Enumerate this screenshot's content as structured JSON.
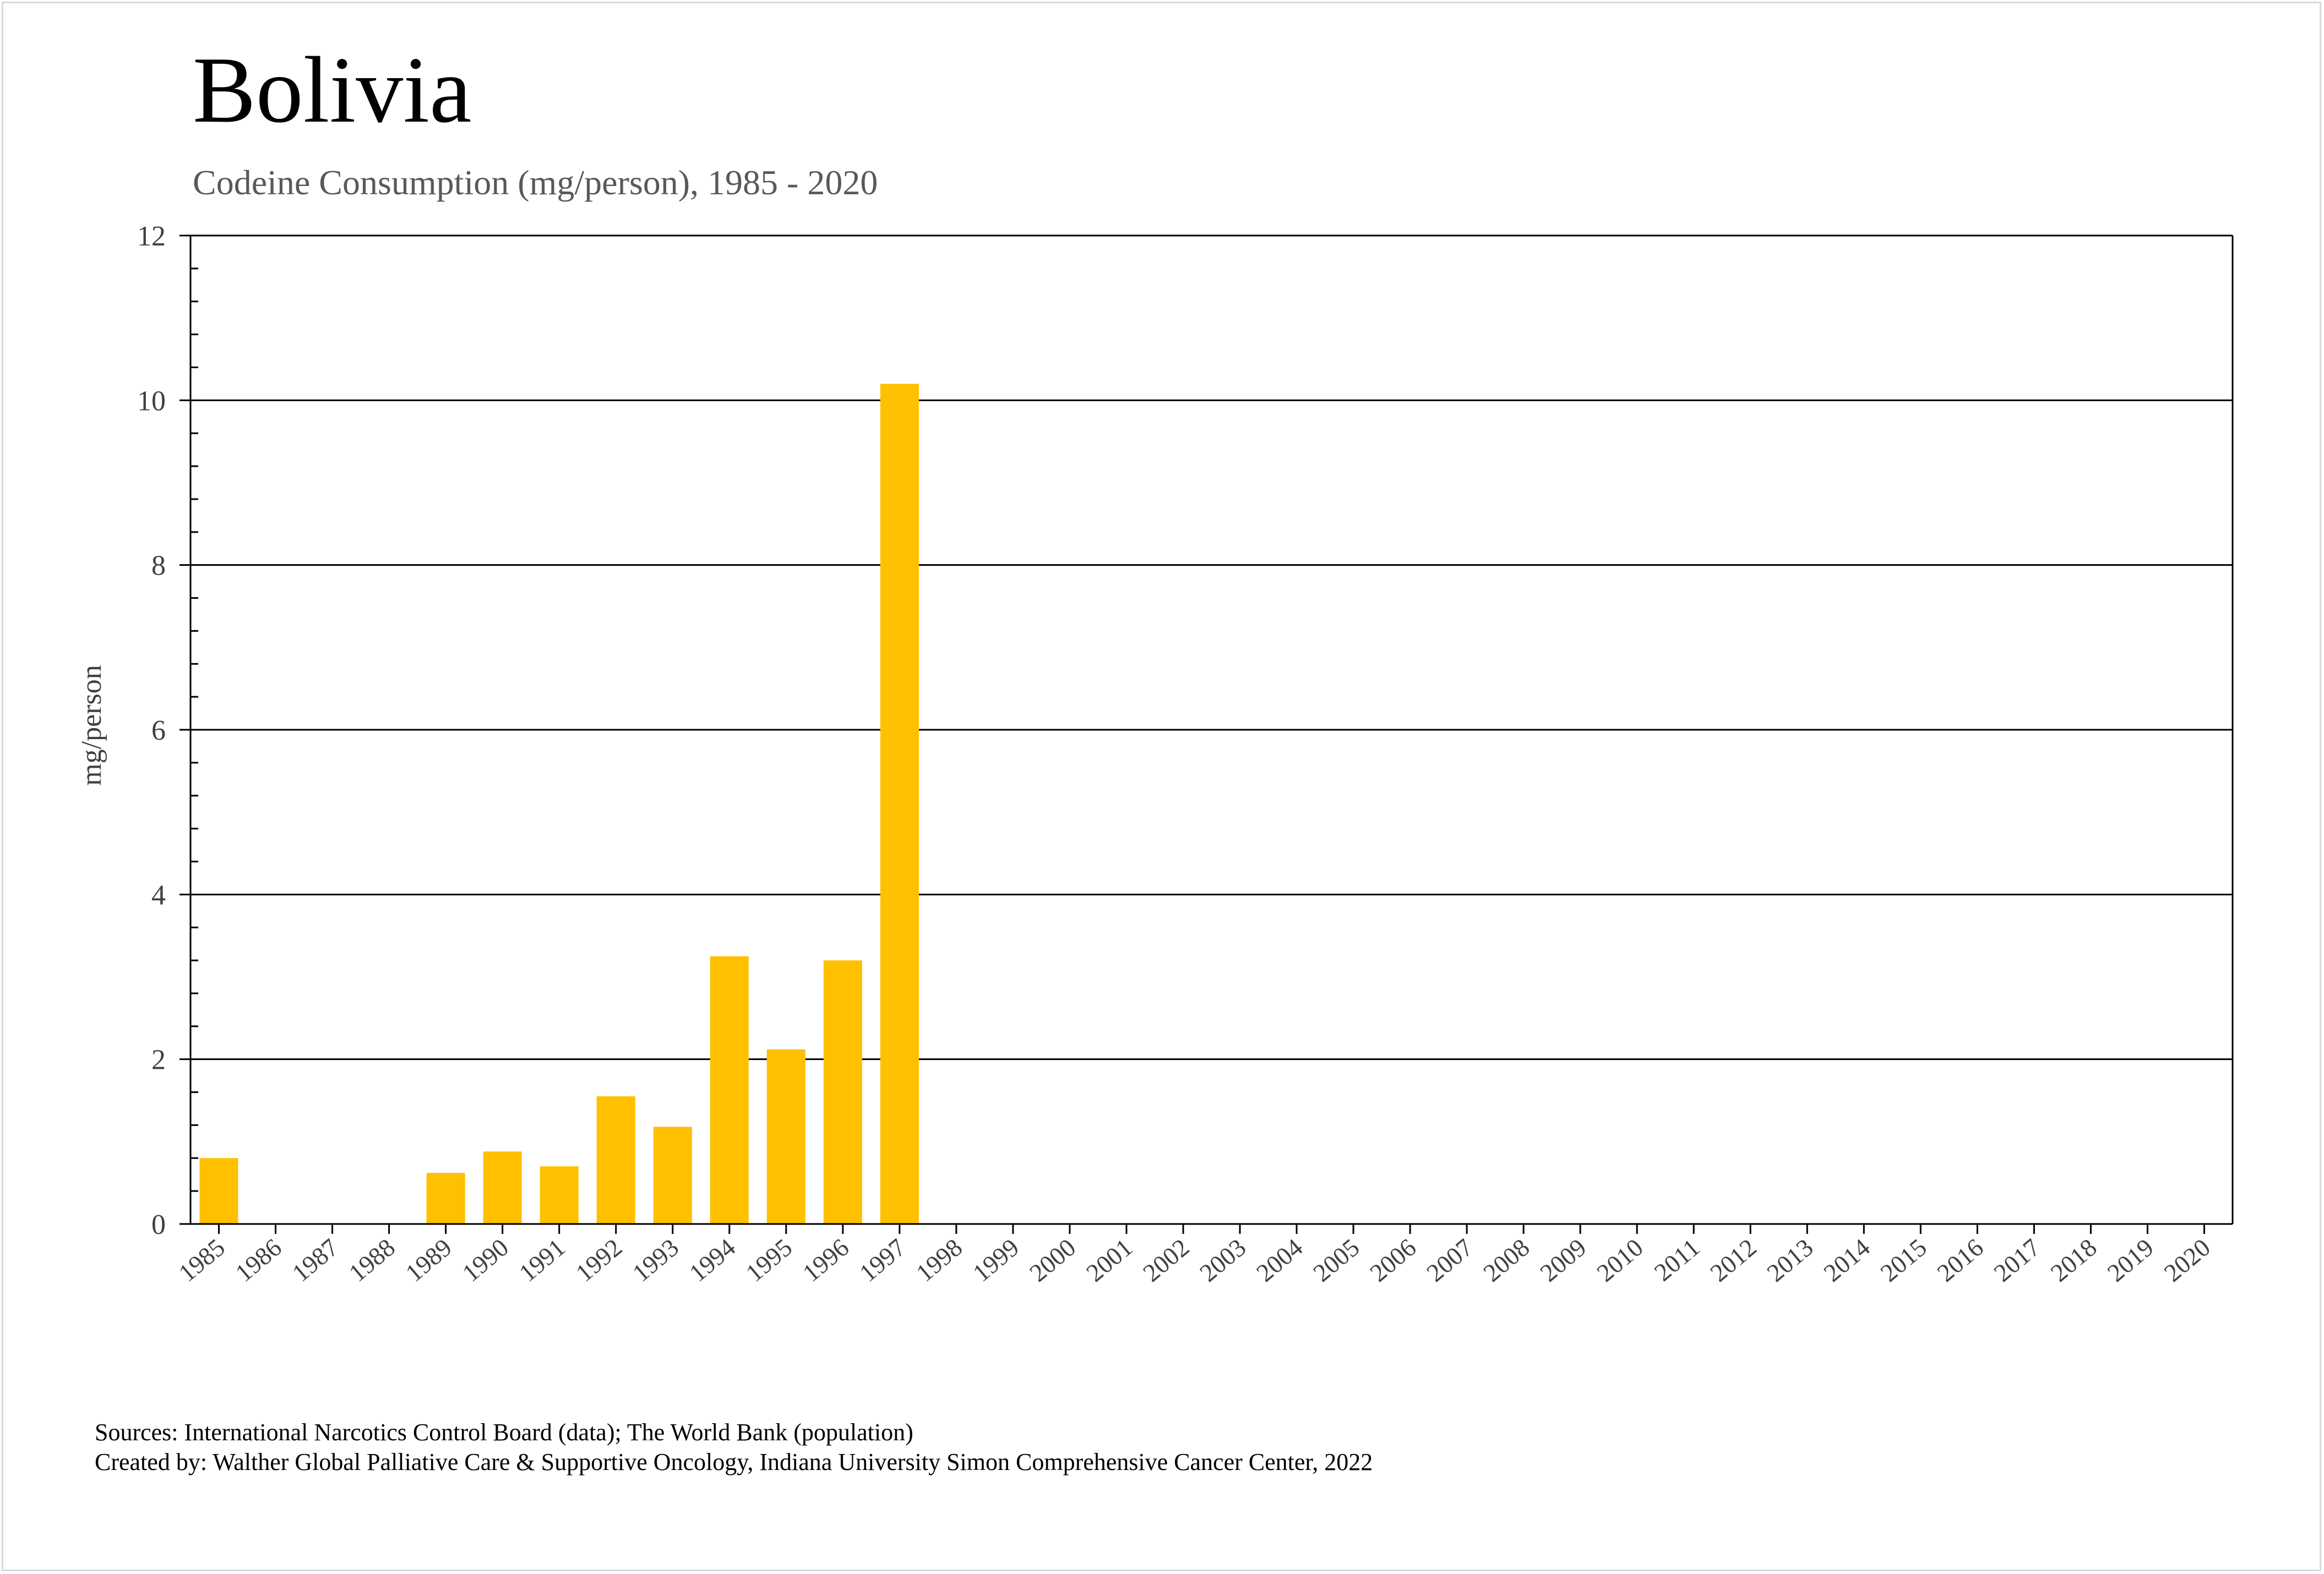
{
  "chart_data": {
    "type": "bar",
    "title": "Bolivia",
    "subtitle": "Codeine Consumption (mg/person), 1985 - 2020",
    "xlabel": "",
    "ylabel": "mg/person",
    "ylim": [
      0,
      12
    ],
    "yticks": [
      0,
      2,
      4,
      6,
      8,
      10,
      12
    ],
    "grid": true,
    "bar_color": "#FFC000",
    "categories": [
      "1985",
      "1986",
      "1987",
      "1988",
      "1989",
      "1990",
      "1991",
      "1992",
      "1993",
      "1994",
      "1995",
      "1996",
      "1997",
      "1998",
      "1999",
      "2000",
      "2001",
      "2002",
      "2003",
      "2004",
      "2005",
      "2006",
      "2007",
      "2008",
      "2009",
      "2010",
      "2011",
      "2012",
      "2013",
      "2014",
      "2015",
      "2016",
      "2017",
      "2018",
      "2019",
      "2020"
    ],
    "values": [
      0.8,
      0,
      0,
      0,
      0.62,
      0.88,
      0.7,
      1.55,
      1.18,
      3.25,
      2.12,
      3.2,
      10.2,
      0,
      0,
      0,
      0,
      0,
      0,
      0,
      0,
      0,
      0,
      0,
      0,
      0,
      0,
      0,
      0,
      0,
      0,
      0,
      0,
      0,
      0,
      0
    ]
  },
  "footer": {
    "sources": "Sources: International Narcotics Control Board (data); The World Bank (population)",
    "created_by": "Created by: Walther Global Palliative Care & Supportive Oncology, Indiana University Simon Comprehensive Cancer Center, 2022"
  }
}
